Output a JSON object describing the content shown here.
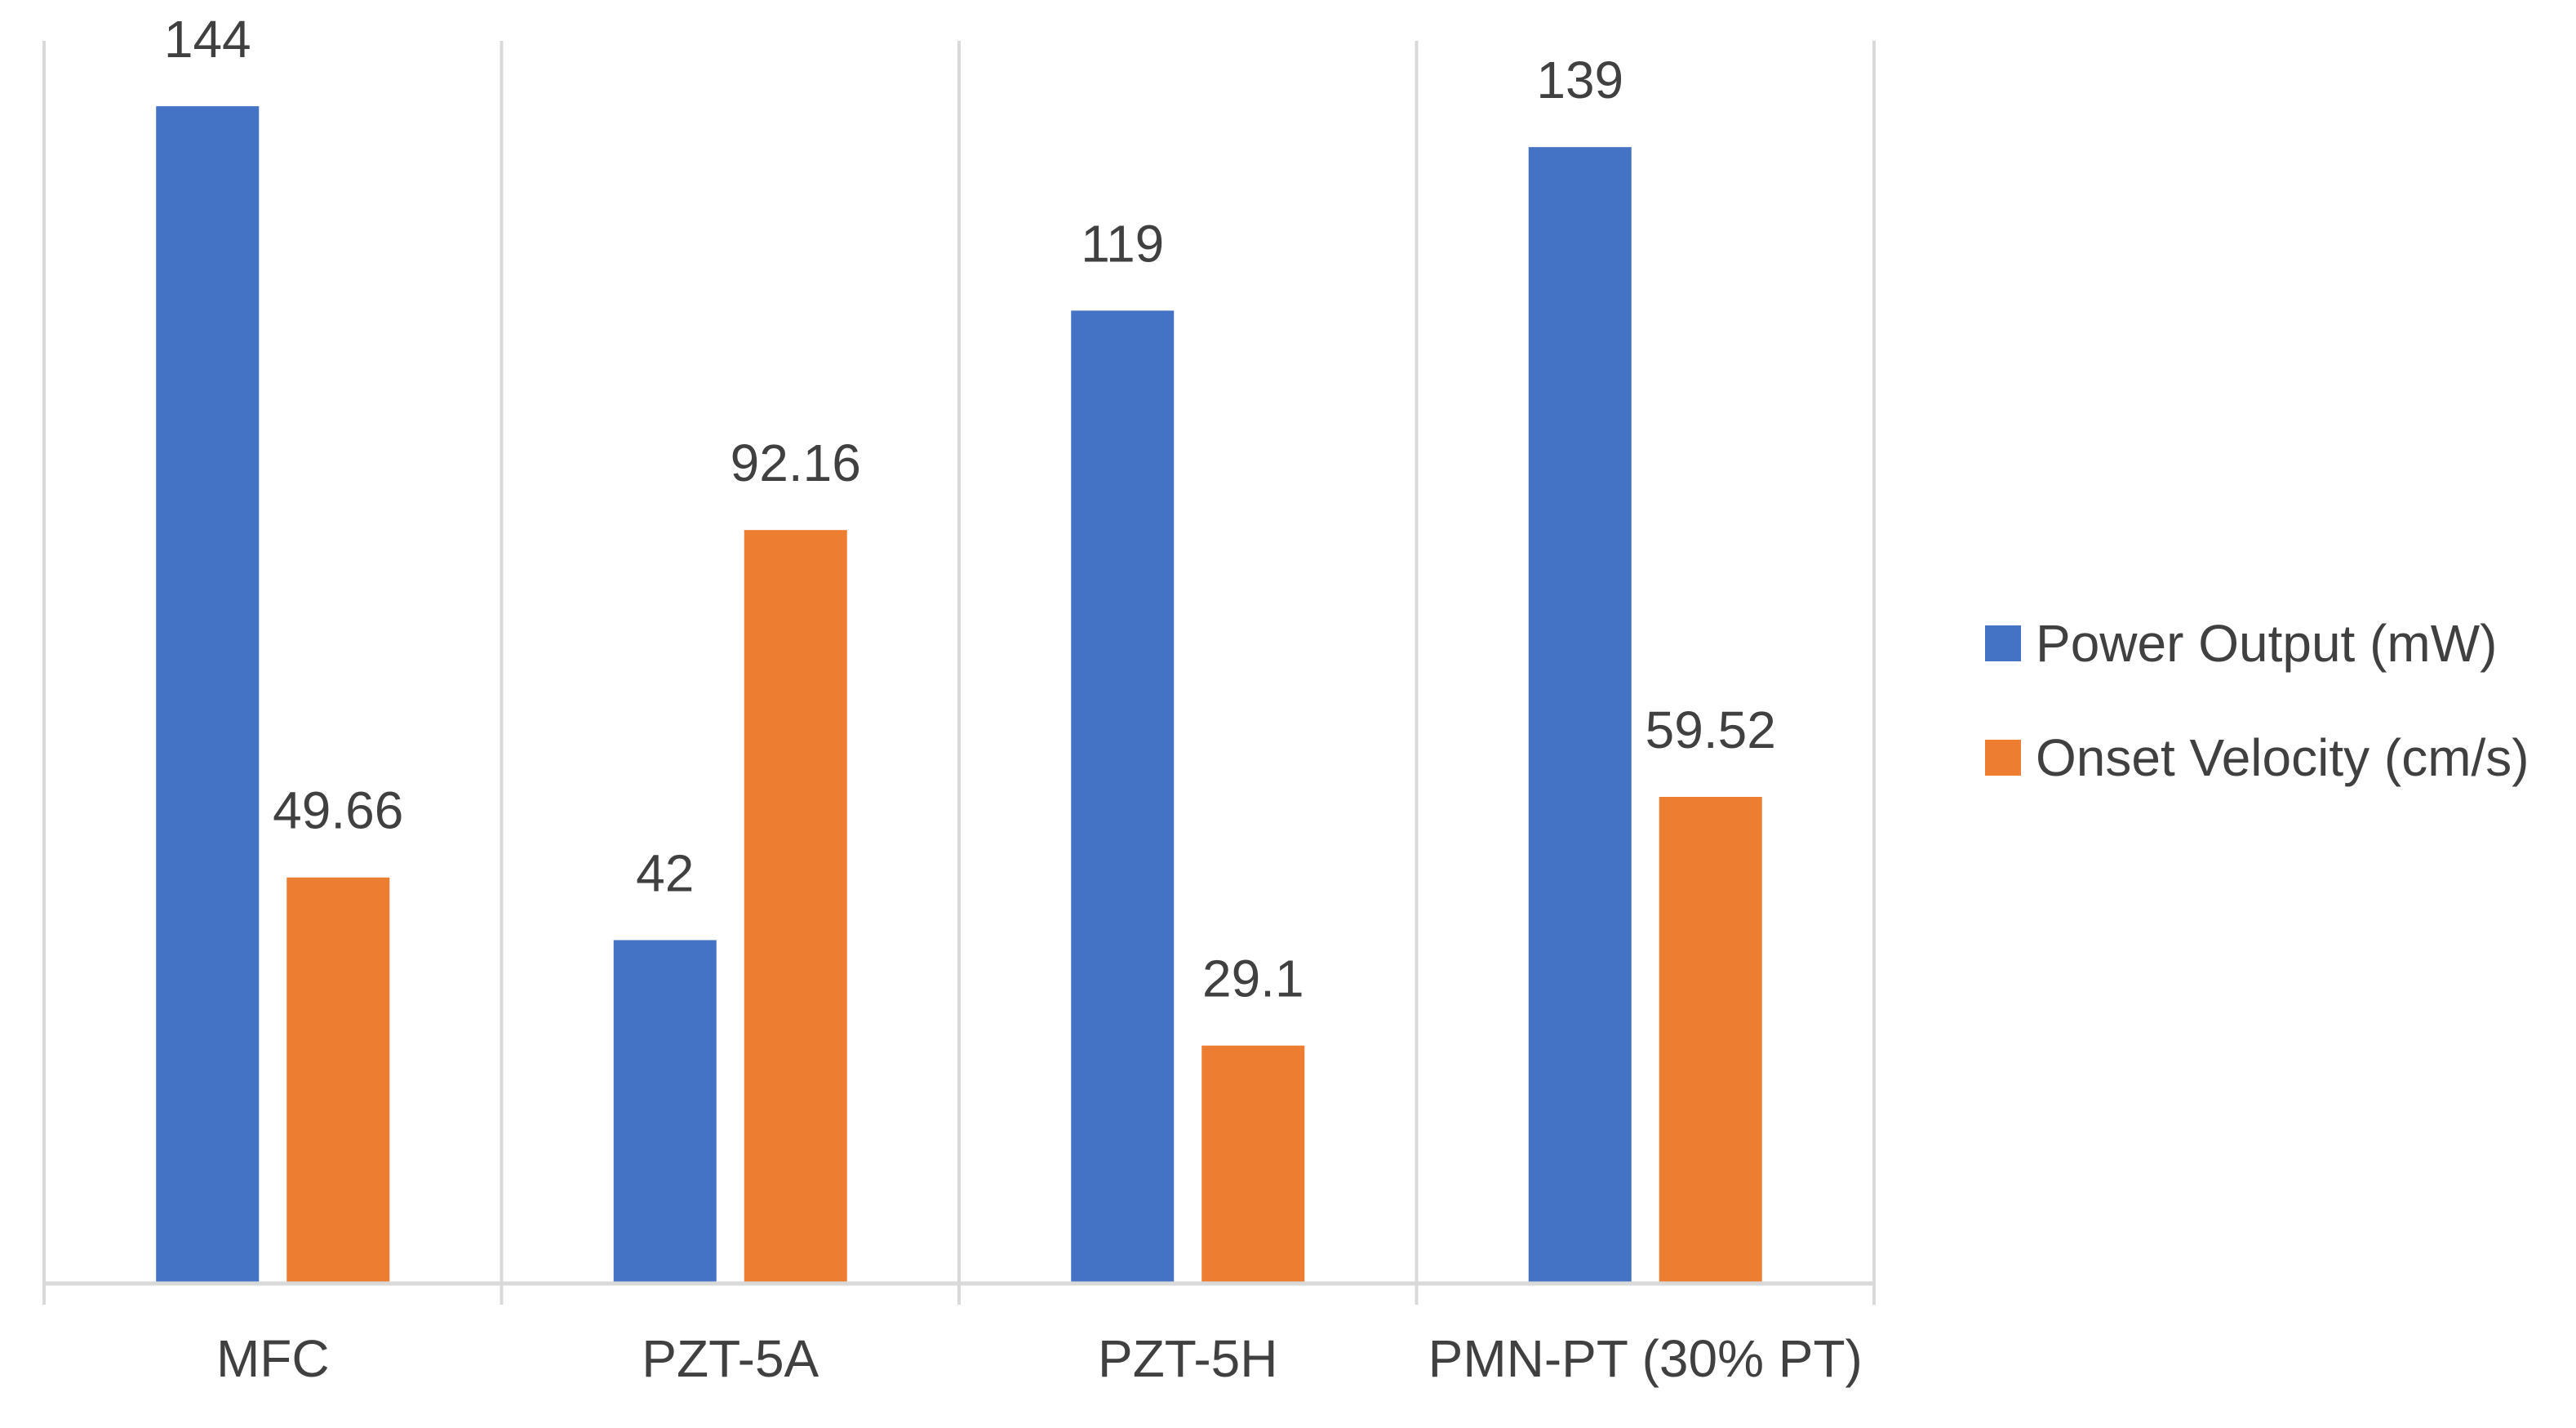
{
  "chart_data": {
    "type": "bar",
    "title": "",
    "xlabel": "",
    "ylabel": "",
    "categories": [
      "MFC",
      "PZT-5A",
      "PZT-5H",
      "PMN-PT (30% PT)"
    ],
    "series": [
      {
        "name": "Power Output (mW)",
        "color": "#4472C4",
        "values": [
          144,
          42,
          119,
          139
        ],
        "labels": [
          "144",
          "42",
          "119",
          "139"
        ]
      },
      {
        "name": "Onset Velocity (cm/s)",
        "color": "#ED7D31",
        "values": [
          49.66,
          92.16,
          29.1,
          59.52
        ],
        "labels": [
          "49.66",
          "92.16",
          "29.1",
          "59.52"
        ]
      }
    ],
    "ylim": [
      0,
      152
    ],
    "grid": "vertical category separators",
    "legend": "right"
  }
}
